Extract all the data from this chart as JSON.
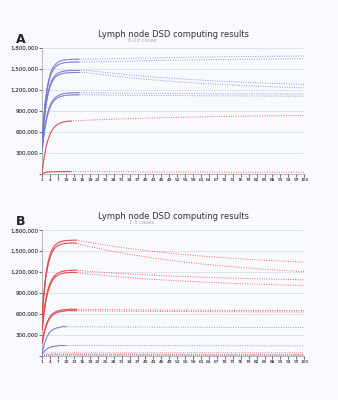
{
  "title": "Lymph node DSD computing results",
  "subtitle_A": "6-10 cases",
  "subtitle_B": "1-5 cases",
  "label_A": "A",
  "label_B": "B",
  "xlim": [
    1,
    100
  ],
  "ylim": [
    0,
    1800000
  ],
  "yticks": [
    0,
    300000,
    600000,
    900000,
    1200000,
    1500000,
    1800000
  ],
  "xtick_labels": [
    "1",
    "4",
    "7",
    "10",
    "13",
    "16",
    "19",
    "22",
    "25",
    "28",
    "31",
    "34",
    "37",
    "40",
    "43",
    "46",
    "49",
    "52",
    "55",
    "58",
    "61",
    "64",
    "67",
    "70",
    "73",
    "76",
    "79",
    "82",
    "85",
    "88",
    "91",
    "94",
    "97",
    "100"
  ],
  "xtick_positions": [
    1,
    4,
    7,
    10,
    13,
    16,
    19,
    22,
    25,
    28,
    31,
    34,
    37,
    40,
    43,
    46,
    49,
    52,
    55,
    58,
    61,
    64,
    67,
    70,
    73,
    76,
    79,
    82,
    85,
    88,
    91,
    94,
    97,
    100
  ],
  "blue_color": "#7878cc",
  "red_color": "#dd4444",
  "background": "#f8f9fc",
  "grid_color": "#ccd4e0"
}
